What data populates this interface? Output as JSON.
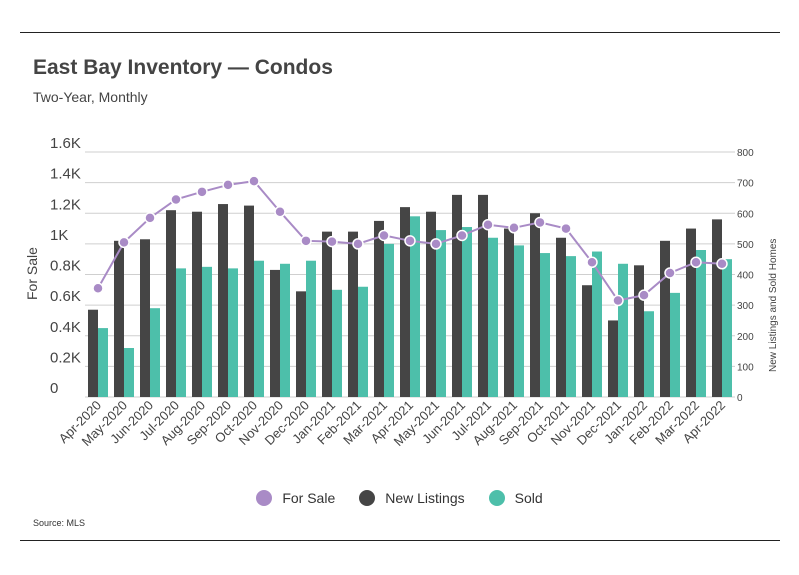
{
  "header": {
    "title": "East Bay Inventory — Condos",
    "subtitle": "Two-Year, Monthly"
  },
  "footer": {
    "source": "Source:  MLS"
  },
  "colors": {
    "for_sale": "#a98bc6",
    "new_listings": "#454545",
    "sold": "#4dbfaa",
    "grid": "#cfcfcf"
  },
  "chart_data": {
    "type": "bar",
    "title": "East Bay Inventory — Condos",
    "subtitle": "Two-Year, Monthly",
    "categories": [
      "Apr-2020",
      "May-2020",
      "Jun-2020",
      "Jul-2020",
      "Aug-2020",
      "Sep-2020",
      "Oct-2020",
      "Nov-2020",
      "Dec-2020",
      "Jan-2021",
      "Feb-2021",
      "Mar-2021",
      "Apr-2021",
      "May-2021",
      "Jun-2021",
      "Jul-2021",
      "Aug-2021",
      "Sep-2021",
      "Oct-2021",
      "Nov-2021",
      "Dec-2021",
      "Jan-2022",
      "Feb-2022",
      "Mar-2022",
      "Apr-2022"
    ],
    "y_left": {
      "label": "For Sale",
      "ticks": [
        "0",
        "0.2K",
        "0.4K",
        "0.6K",
        "0.8K",
        "1K",
        "1.2K",
        "1.4K",
        "1.6K"
      ],
      "range": [
        0,
        1600
      ]
    },
    "y_right": {
      "label": "New Listings and Sold Homes",
      "ticks": [
        "0",
        "100",
        "200",
        "300",
        "400",
        "500",
        "600",
        "700",
        "800"
      ],
      "range": [
        0,
        800
      ]
    },
    "grid": true,
    "legend_position": "bottom",
    "series": [
      {
        "name": "For Sale",
        "type": "line",
        "axis": "left",
        "values": [
          710,
          1010,
          1170,
          1290,
          1340,
          1385,
          1410,
          1210,
          1020,
          1015,
          1000,
          1055,
          1020,
          1000,
          1055,
          1125,
          1105,
          1140,
          1100,
          880,
          630,
          665,
          810,
          880,
          870
        ]
      },
      {
        "name": "New Listings",
        "type": "bar",
        "axis": "right",
        "values": [
          285,
          510,
          515,
          610,
          605,
          630,
          625,
          415,
          345,
          540,
          540,
          575,
          620,
          605,
          660,
          660,
          550,
          600,
          520,
          365,
          250,
          430,
          510,
          550,
          580
        ]
      },
      {
        "name": "Sold",
        "type": "bar",
        "axis": "right",
        "values": [
          225,
          160,
          290,
          420,
          425,
          420,
          445,
          435,
          445,
          350,
          360,
          500,
          590,
          545,
          555,
          520,
          495,
          470,
          460,
          475,
          435,
          280,
          340,
          480,
          450
        ]
      }
    ],
    "legend": [
      "For Sale",
      "New Listings",
      "Sold"
    ]
  }
}
